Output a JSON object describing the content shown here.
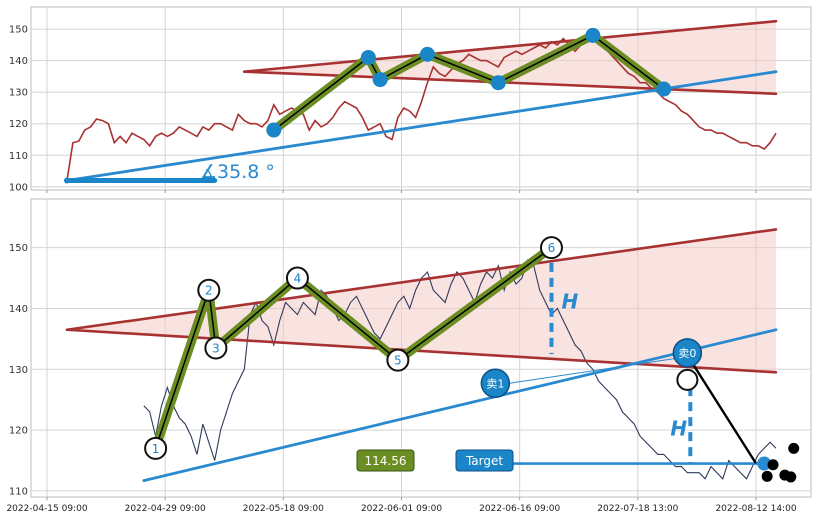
{
  "chart_data": [
    {
      "type": "line",
      "title": "",
      "xlabel": "",
      "ylabel": "",
      "ylim": [
        99,
        157
      ],
      "yticks": [
        100,
        110,
        120,
        130,
        140,
        150
      ],
      "grid": true,
      "price_line": {
        "color": "#a83232",
        "x": [
          0,
          1,
          2,
          3,
          4,
          5,
          6,
          7,
          8,
          9,
          10,
          11,
          12,
          13,
          14,
          15,
          16,
          17,
          18,
          19,
          20,
          21,
          22,
          23,
          24,
          25,
          26,
          27,
          28,
          29,
          30,
          31,
          32,
          33,
          34,
          35,
          36,
          37,
          38,
          39,
          40,
          41,
          42,
          43,
          44,
          45,
          46,
          47,
          48,
          49,
          50,
          51,
          52,
          53,
          54,
          55,
          56,
          57,
          58,
          59,
          60,
          61,
          62,
          63,
          64,
          65,
          66,
          67,
          68,
          69,
          70,
          71,
          72,
          73,
          74,
          75,
          76,
          77,
          78,
          79,
          80,
          81,
          82,
          83,
          84,
          85,
          86,
          87,
          88,
          89,
          90,
          91,
          92,
          93,
          94,
          95,
          96,
          97,
          98,
          99,
          100,
          101,
          102,
          103,
          104,
          105,
          106,
          107,
          108,
          109,
          110,
          111,
          112,
          113,
          114,
          115,
          116,
          117,
          118,
          119,
          120
        ],
        "y": [
          102,
          114,
          114.5,
          118,
          119,
          121.5,
          121,
          120,
          114,
          116,
          114,
          117,
          116,
          115,
          113,
          116,
          117,
          116,
          117,
          119,
          118,
          117,
          116,
          119,
          118,
          120,
          120,
          119,
          118,
          123,
          121,
          120,
          120,
          119,
          121,
          126,
          123,
          124,
          125,
          124,
          123,
          118,
          121,
          119,
          120,
          122,
          125,
          127,
          126,
          125,
          122,
          118,
          119,
          120,
          116,
          115,
          122,
          125,
          124,
          122,
          127,
          133,
          138,
          136,
          135,
          137,
          139,
          140,
          142,
          141,
          140,
          140,
          139,
          138,
          141,
          142,
          143,
          142,
          143,
          144,
          145,
          144,
          146,
          145,
          147,
          145,
          143,
          145,
          148,
          146,
          147,
          144,
          142,
          140,
          138,
          136,
          135,
          133,
          133,
          131,
          130,
          128,
          127,
          126,
          124,
          123,
          121,
          119,
          118,
          118,
          117,
          117,
          116,
          115,
          114,
          114,
          113,
          113,
          112,
          114,
          117
        ]
      },
      "trend_lines": [
        {
          "name": "upper",
          "color": "#a83232",
          "x": [
            30,
            120
          ],
          "y": [
            136.5,
            152.5
          ]
        },
        {
          "name": "lower",
          "color": "#a83232",
          "x": [
            30,
            120
          ],
          "y": [
            136.5,
            129.5
          ]
        },
        {
          "name": "support",
          "color": "#2a8ad0",
          "x": [
            0,
            120
          ],
          "y": [
            102,
            136.5
          ]
        },
        {
          "name": "baseline",
          "color": "#1a86c8",
          "x": [
            0,
            25
          ],
          "y": [
            102,
            102
          ]
        }
      ],
      "pattern": {
        "x": [
          35,
          51,
          53,
          61,
          73,
          89,
          101
        ],
        "y": [
          118,
          141,
          134,
          142,
          133,
          148,
          131
        ]
      },
      "angle_label": "∡35.8 °"
    },
    {
      "type": "line",
      "title": "",
      "xlabel": "",
      "ylabel": "",
      "ylim": [
        109,
        158
      ],
      "yticks": [
        110,
        120,
        130,
        140,
        150
      ],
      "grid": true,
      "xtick_labels": [
        "2022-04-15 09:00",
        "2022-04-29 09:00",
        "2022-05-18 09:00",
        "2022-06-01 09:00",
        "2022-06-16 09:00",
        "2022-07-18 13:00",
        "2022-08-12 14:00"
      ],
      "xtick_positions": [
        0,
        20,
        40,
        60,
        80,
        100,
        120
      ],
      "price_line": {
        "color": "#2f3a5c",
        "x": [
          13,
          14,
          15,
          16,
          17,
          18,
          19,
          20,
          21,
          22,
          23,
          24,
          25,
          26,
          27,
          28,
          29,
          30,
          31,
          32,
          33,
          34,
          35,
          36,
          37,
          38,
          39,
          40,
          41,
          42,
          43,
          44,
          45,
          46,
          47,
          48,
          49,
          50,
          51,
          52,
          53,
          54,
          55,
          56,
          57,
          58,
          59,
          60,
          61,
          62,
          63,
          64,
          65,
          66,
          67,
          68,
          69,
          70,
          71,
          72,
          73,
          74,
          75,
          76,
          77,
          78,
          79,
          80,
          81,
          82,
          83,
          84,
          85,
          86,
          87,
          88,
          89,
          90,
          91,
          92,
          93,
          94,
          95,
          96,
          97,
          98,
          99,
          100,
          101,
          102,
          103,
          104,
          105,
          106,
          107,
          108,
          109,
          110,
          111,
          112,
          113,
          114,
          115,
          116,
          117,
          118,
          119,
          120
        ],
        "y": [
          124,
          123,
          119,
          124,
          127,
          124,
          122,
          121,
          119,
          116,
          121,
          118,
          115,
          120,
          123,
          126,
          128,
          130,
          139,
          141,
          138,
          137,
          134,
          138,
          141,
          140,
          139,
          141,
          140,
          139,
          143,
          142,
          140,
          138,
          139,
          141,
          142,
          140,
          138,
          136,
          135,
          137,
          139,
          141,
          142,
          140,
          143,
          145,
          146,
          143,
          142,
          141,
          144,
          146,
          145,
          143,
          141,
          144,
          146,
          145,
          147,
          143,
          146,
          144,
          145,
          148,
          147,
          143,
          141,
          139,
          140,
          138,
          136,
          134,
          133,
          131,
          130,
          128,
          127,
          126,
          125,
          123,
          122,
          121,
          119,
          118,
          117,
          116,
          116,
          115,
          114,
          114,
          113,
          113,
          113,
          112,
          114,
          113,
          112,
          115,
          114,
          113,
          112,
          114,
          116,
          117,
          118,
          117
        ]
      },
      "trend_lines": [
        {
          "name": "upper",
          "color": "#a83232",
          "x": [
            0,
            120
          ],
          "y": [
            136.5,
            153
          ]
        },
        {
          "name": "lower",
          "color": "#a83232",
          "x": [
            0,
            120
          ],
          "y": [
            136.5,
            129.5
          ]
        },
        {
          "name": "support",
          "color": "#2a8ad0",
          "x": [
            13,
            120
          ],
          "y": [
            111.7,
            136.5
          ]
        },
        {
          "name": "target",
          "color": "#2a8ad0",
          "x": [
            71,
            118
          ],
          "y": [
            114.5,
            114.5
          ]
        },
        {
          "name": "sell-drop",
          "color": "#000000",
          "x": [
            105,
            116.5
          ],
          "y": [
            132.3,
            114.7
          ]
        }
      ],
      "pattern": {
        "labels": [
          "1",
          "2",
          "3",
          "4",
          "5",
          "6"
        ],
        "x": [
          15,
          24,
          25.2,
          39,
          56,
          82
        ],
        "y": [
          117,
          143,
          133.5,
          145,
          131.5,
          150
        ]
      },
      "height_markers": [
        {
          "x": 82,
          "y_top": 147.5,
          "y_bottom": 132.5,
          "label": "H"
        },
        {
          "x": 105.5,
          "y_top": 132,
          "y_bottom": 114.5,
          "label": "H"
        }
      ],
      "sell_markers": [
        {
          "label": "卖0",
          "x": 105,
          "y": 132.7
        },
        {
          "label": "卖1",
          "x": 72.5,
          "y": 127.7
        }
      ],
      "price_box": {
        "label": "114.56",
        "color": "#6b8e23"
      },
      "target_box": {
        "label": "Target",
        "color": "#1a86c8"
      },
      "end_dots": {
        "x": [
          118.5,
          119.5,
          121.5,
          122.5,
          123
        ],
        "y": [
          112.4,
          114.3,
          112.6,
          112.3,
          117
        ]
      }
    }
  ]
}
